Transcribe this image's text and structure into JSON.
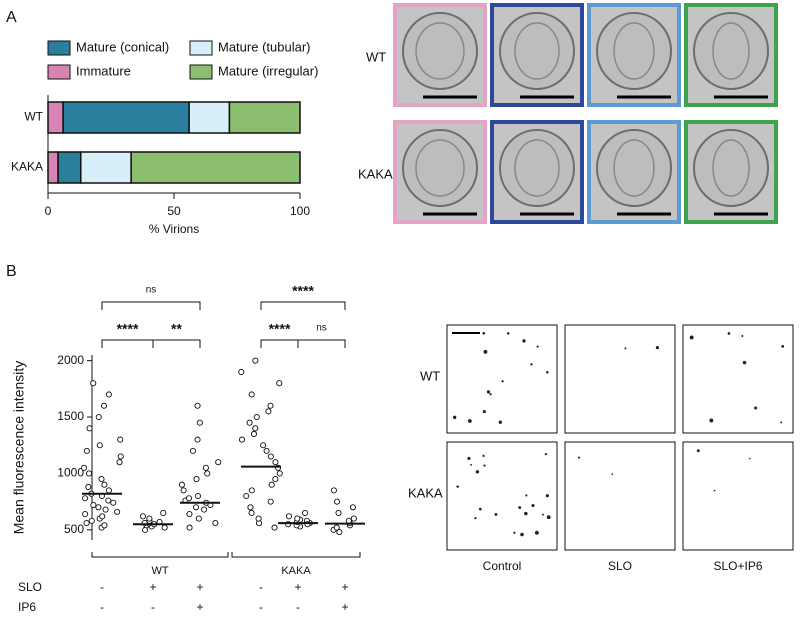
{
  "panel_labels": [
    "A",
    "B"
  ],
  "chart_data": [
    {
      "type": "bar",
      "orientation": "horizontal",
      "stacked": true,
      "categories": [
        "WT",
        "KAKA"
      ],
      "series": [
        {
          "name": "Immature",
          "color": "#d783b3",
          "values": [
            6,
            4
          ]
        },
        {
          "name": "Mature (conical)",
          "color": "#2b7f9e",
          "values": [
            50,
            9
          ]
        },
        {
          "name": "Mature (tubular)",
          "color": "#d7eff9",
          "values": [
            16,
            20
          ]
        },
        {
          "name": "Mature (irregular)",
          "color": "#8cbe6f",
          "values": [
            28,
            67
          ]
        }
      ],
      "xlim": [
        0,
        100
      ],
      "xticks": [
        0,
        50,
        100
      ],
      "xlabel": "% Virions"
    },
    {
      "type": "dot",
      "ylabel": "Mean fluorescence intensity",
      "ylim": [
        410,
        2050
      ],
      "yticks": [
        500,
        1000,
        1500,
        2000
      ],
      "groups": [
        {
          "mean": 820,
          "values": [
            520,
            540,
            560,
            580,
            600,
            620,
            640,
            660,
            680,
            700,
            720,
            740,
            760,
            780,
            800,
            820,
            850,
            880,
            900,
            950,
            1000,
            1050,
            1100,
            1150,
            1200,
            1250,
            1300,
            1400,
            1500,
            1600,
            1700,
            1800
          ]
        },
        {
          "mean": 550,
          "values": [
            500,
            520,
            530,
            540,
            550,
            555,
            560,
            570,
            580,
            600,
            620,
            650
          ]
        },
        {
          "mean": 740,
          "values": [
            520,
            560,
            600,
            640,
            680,
            700,
            720,
            740,
            760,
            780,
            800,
            850,
            900,
            950,
            1000,
            1050,
            1100,
            1200,
            1300,
            1450,
            1600
          ]
        },
        {
          "mean": 1060,
          "values": [
            520,
            560,
            600,
            650,
            700,
            750,
            800,
            850,
            900,
            950,
            1000,
            1050,
            1100,
            1150,
            1200,
            1250,
            1300,
            1350,
            1400,
            1450,
            1500,
            1550,
            1600,
            1700,
            1800,
            1900,
            2000
          ]
        },
        {
          "mean": 560,
          "values": [
            530,
            540,
            550,
            560,
            570,
            580,
            590,
            600,
            620,
            650,
            550
          ]
        },
        {
          "mean": 555,
          "values": [
            480,
            500,
            520,
            540,
            560,
            580,
            600,
            650,
            700,
            750,
            850
          ]
        }
      ],
      "significance": [
        "ns",
        "****",
        "**",
        "****",
        "****",
        "ns"
      ],
      "group_labels": [
        "WT",
        "KAKA"
      ],
      "conditions": [
        {
          "name": "SLO",
          "values": [
            "-",
            "+",
            "+",
            "-",
            "+",
            "+"
          ]
        },
        {
          "name": "IP6",
          "values": [
            "-",
            "-",
            "+",
            "-",
            "-",
            "+"
          ]
        }
      ]
    }
  ],
  "micrographs_a": {
    "rows": [
      "WT",
      "KAKA"
    ]
  },
  "micrographs_b": {
    "rows": [
      "WT",
      "KAKA"
    ],
    "columns": [
      "Control",
      "SLO",
      "SLO+IP6"
    ]
  }
}
